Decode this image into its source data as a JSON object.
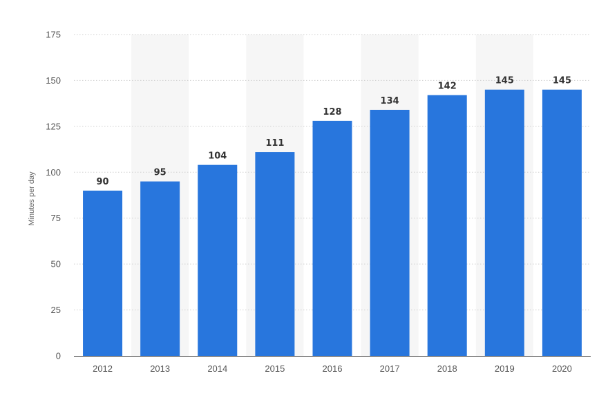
{
  "chart_data": {
    "type": "bar",
    "categories": [
      "2012",
      "2013",
      "2014",
      "2015",
      "2016",
      "2017",
      "2018",
      "2019",
      "2020"
    ],
    "values": [
      90,
      95,
      104,
      111,
      128,
      134,
      142,
      145,
      145
    ],
    "title": "",
    "xlabel": "",
    "ylabel": "Minutes per day",
    "ylim": [
      0,
      175
    ],
    "yticks": [
      0,
      25,
      50,
      75,
      100,
      125,
      150,
      175
    ],
    "grid": true,
    "legend": "none",
    "bar_color": "#2876dd",
    "band_color": "#f6f6f6",
    "data_labels": true
  }
}
